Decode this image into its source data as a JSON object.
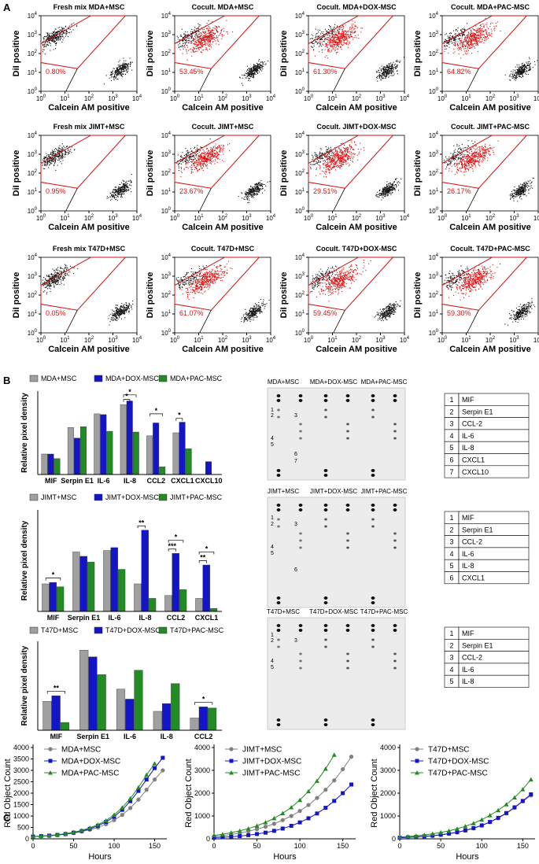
{
  "panel_labels": {
    "a": "A",
    "b": "B",
    "c": "C"
  },
  "flow": {
    "y_label": "DiI positive",
    "x_label": "Calcein AM positive",
    "tick_base": "10",
    "tick_exponents": [
      0,
      1,
      2,
      3,
      4
    ],
    "plots": [
      {
        "title": "Fresh mix MDA+MSC",
        "gate_percent": "0.80%"
      },
      {
        "title": "Cocult. MDA+MSC",
        "gate_percent": "53.45%"
      },
      {
        "title": "Cocult. MDA+DOX-MSC",
        "gate_percent": "61.30%"
      },
      {
        "title": "Cocult. MDA+PAC-MSC",
        "gate_percent": "64.82%"
      },
      {
        "title": "Fresh mix JIMT+MSC",
        "gate_percent": "0.95%"
      },
      {
        "title": "Cocult. JIMT+MSC",
        "gate_percent": "23.67%"
      },
      {
        "title": "Cocult. JIMT+DOX-MSC",
        "gate_percent": "29.51%"
      },
      {
        "title": "Cocult. JIMT+PAC-MSC",
        "gate_percent": "26.17%"
      },
      {
        "title": "Fresh mix T47D+MSC",
        "gate_percent": "0.05%"
      },
      {
        "title": "Cocult. T47D+MSC",
        "gate_percent": "61.07%"
      },
      {
        "title": "Cocult. T47D+DOX-MSC",
        "gate_percent": "59.45%"
      },
      {
        "title": "Cocult. T47D+PAC-MSC",
        "gate_percent": "59.30%"
      }
    ]
  },
  "blots": [
    {
      "headers": [
        "MDA+MSC",
        "MDA+DOX-MSC",
        "MDA+PAC-MSC"
      ],
      "spot_labels": [
        "1",
        "2",
        "3",
        "4",
        "5",
        "6",
        "7"
      ],
      "key": [
        [
          "1",
          "MIF"
        ],
        [
          "2",
          "Serpin E1"
        ],
        [
          "3",
          "CCL-2"
        ],
        [
          "4",
          "IL-6"
        ],
        [
          "5",
          "IL-8"
        ],
        [
          "6",
          "CXCL1"
        ],
        [
          "7",
          "CXCL10"
        ]
      ]
    },
    {
      "headers": [
        "JIMT+MSC",
        "JIMT+DOX-MSC",
        "JIMT+PAC-MSC"
      ],
      "spot_labels": [
        "1",
        "2",
        "3",
        "4",
        "5",
        "6"
      ],
      "key": [
        [
          "1",
          "MIF"
        ],
        [
          "2",
          "Serpin E1"
        ],
        [
          "3",
          "CCL-2"
        ],
        [
          "4",
          "IL-6"
        ],
        [
          "5",
          "IL-8"
        ],
        [
          "6",
          "CXCL1"
        ]
      ]
    },
    {
      "headers": [
        "T47D+MSC",
        "T47D+DOX-MSC",
        "T47D+PAC-MSC"
      ],
      "spot_labels": [
        "1",
        "2",
        "3",
        "4",
        "5"
      ],
      "key": [
        [
          "1",
          "MIF"
        ],
        [
          "2",
          "Serpin E1"
        ],
        [
          "3",
          "CCL-2"
        ],
        [
          "4",
          "IL-6"
        ],
        [
          "5",
          "IL-8"
        ]
      ]
    }
  ],
  "chart_data": [
    {
      "type": "bar",
      "y_label": "Relative pixel density",
      "ylim": [
        0,
        1.1
      ],
      "categories": [
        "MIF",
        "Serpin E1",
        "IL-6",
        "IL-8",
        "CCL2",
        "CXCL1",
        "CXCL10"
      ],
      "series": [
        {
          "name": "MDA+MSC",
          "color": "#a0a0a0",
          "values": [
            0.27,
            0.62,
            0.8,
            0.92,
            0.51,
            0.55,
            null
          ]
        },
        {
          "name": "MDA+DOX-MSC",
          "color": "#1515c8",
          "values": [
            0.27,
            0.48,
            0.79,
            0.97,
            0.68,
            0.69,
            0.17
          ]
        },
        {
          "name": "MDA+PAC-MSC",
          "color": "#238b23",
          "values": [
            0.21,
            0.63,
            0.57,
            0.56,
            0.1,
            0.34,
            null
          ]
        }
      ],
      "annotations": [
        {
          "text": "*",
          "category": 3,
          "series": [
            0,
            2
          ],
          "y": 1.05
        },
        {
          "text": "*",
          "category": 3,
          "series": [
            0,
            1
          ],
          "y": 0.99
        },
        {
          "text": "*",
          "category": 4,
          "series": [
            0,
            2
          ],
          "y": 0.8
        },
        {
          "text": "*",
          "category": 5,
          "series": [
            0,
            1
          ],
          "y": 0.74
        }
      ]
    },
    {
      "type": "bar",
      "y_label": "Relative pixel density",
      "ylim": [
        0,
        0.7
      ],
      "categories": [
        "MIF",
        "Serpin E1",
        "IL-6",
        "IL-8",
        "CCL2",
        "CXCL1"
      ],
      "series": [
        {
          "name": "JIMT+MSC",
          "color": "#a0a0a0",
          "values": [
            0.19,
            0.41,
            0.42,
            0.19,
            0.11,
            0.09
          ]
        },
        {
          "name": "JIMT+DOX-MSC",
          "color": "#1515c8",
          "values": [
            0.2,
            0.38,
            0.44,
            0.56,
            0.4,
            0.32
          ]
        },
        {
          "name": "JIMT+PAC-MSC",
          "color": "#238b23",
          "values": [
            0.17,
            0.34,
            0.29,
            0.09,
            0.15,
            0.02
          ]
        }
      ],
      "annotations": [
        {
          "text": "*",
          "category": 0,
          "series": [
            0,
            2
          ],
          "y": 0.23
        },
        {
          "text": "**",
          "category": 3,
          "series": [
            0,
            1
          ],
          "y": 0.59
        },
        {
          "text": "*",
          "category": 4,
          "series": [
            0,
            2
          ],
          "y": 0.49
        },
        {
          "text": "***",
          "category": 4,
          "series": [
            0,
            1
          ],
          "y": 0.43
        },
        {
          "text": "*",
          "category": 5,
          "series": [
            0,
            2
          ],
          "y": 0.41
        },
        {
          "text": "**",
          "category": 5,
          "series": [
            0,
            1
          ],
          "y": 0.35
        }
      ]
    },
    {
      "type": "bar",
      "y_label": "Relative pixel density",
      "ylim": [
        0,
        0.8
      ],
      "categories": [
        "MIF",
        "Serpin E1",
        "IL-6",
        "IL-8",
        "CCL2"
      ],
      "series": [
        {
          "name": "T47D+MSC",
          "color": "#a0a0a0",
          "values": [
            0.26,
            0.72,
            0.37,
            0.17,
            0.11
          ]
        },
        {
          "name": "T47D+DOX-MSC",
          "color": "#1515c8",
          "values": [
            0.31,
            0.66,
            0.28,
            0.24,
            0.21
          ]
        },
        {
          "name": "T47D+PAC-MSC",
          "color": "#238b23",
          "values": [
            0.07,
            0.5,
            0.54,
            0.42,
            0.2
          ]
        }
      ],
      "annotations": [
        {
          "text": "**",
          "category": 0,
          "series": [
            0,
            2
          ],
          "y": 0.35
        },
        {
          "text": "*",
          "category": 4,
          "series": [
            0,
            2
          ],
          "y": 0.25
        }
      ]
    },
    {
      "type": "line",
      "x_label": "Hours",
      "y_label": "Red Object Count",
      "xlim": [
        0,
        165
      ],
      "ylim": [
        0,
        4000
      ],
      "xticks": [
        0,
        50,
        100,
        150
      ],
      "yticks": [
        0,
        500,
        1000,
        1500,
        2000,
        2500,
        3000,
        3500,
        4000
      ],
      "x": [
        0,
        10,
        20,
        30,
        40,
        50,
        60,
        70,
        80,
        90,
        100,
        110,
        120,
        130,
        140,
        150,
        160
      ],
      "series": [
        {
          "name": "MDA+MSC",
          "color": "#808080",
          "marker": "circle",
          "values": [
            100,
            110,
            130,
            160,
            200,
            250,
            320,
            400,
            500,
            640,
            820,
            1050,
            1350,
            1720,
            2150,
            2600,
            3000
          ]
        },
        {
          "name": "MDA+DOX-MSC",
          "color": "#1515c8",
          "marker": "square",
          "values": [
            100,
            120,
            140,
            170,
            210,
            270,
            340,
            440,
            570,
            740,
            970,
            1270,
            1650,
            2100,
            2600,
            3100,
            3550
          ]
        },
        {
          "name": "MDA+PAC-MSC",
          "color": "#238b23",
          "marker": "triangle",
          "values": [
            100,
            120,
            150,
            180,
            230,
            290,
            370,
            480,
            620,
            800,
            1050,
            1370,
            1770,
            2250,
            2800,
            3300,
            null
          ]
        }
      ]
    },
    {
      "type": "line",
      "x_label": "Hours",
      "y_label": "Red Object Count",
      "xlim": [
        0,
        165
      ],
      "ylim": [
        0,
        4000
      ],
      "xticks": [
        0,
        50,
        100,
        150
      ],
      "yticks": [
        0,
        1000,
        2000,
        3000,
        4000
      ],
      "x": [
        0,
        10,
        20,
        30,
        40,
        50,
        60,
        70,
        80,
        90,
        100,
        110,
        120,
        130,
        140,
        150,
        160
      ],
      "series": [
        {
          "name": "JIMT+MSC",
          "color": "#808080",
          "marker": "circle",
          "values": [
            100,
            140,
            190,
            250,
            330,
            420,
            530,
            660,
            820,
            1000,
            1220,
            1480,
            1790,
            2150,
            2560,
            3050,
            3600
          ]
        },
        {
          "name": "JIMT+DOX-MSC",
          "color": "#1515c8",
          "marker": "square",
          "values": [
            50,
            70,
            90,
            120,
            160,
            210,
            270,
            350,
            450,
            570,
            720,
            900,
            1110,
            1360,
            1660,
            2000,
            2380
          ]
        },
        {
          "name": "JIMT+PAC-MSC",
          "color": "#238b23",
          "marker": "triangle",
          "values": [
            150,
            200,
            270,
            350,
            450,
            570,
            720,
            900,
            1120,
            1380,
            1700,
            2080,
            2540,
            3070,
            3680,
            null,
            null
          ]
        }
      ]
    },
    {
      "type": "line",
      "x_label": "Hours",
      "y_label": "Red Object Count",
      "xlim": [
        0,
        165
      ],
      "ylim": [
        0,
        4000
      ],
      "xticks": [
        0,
        50,
        100,
        150
      ],
      "yticks": [
        0,
        1000,
        2000,
        3000,
        4000
      ],
      "x": [
        0,
        10,
        20,
        30,
        40,
        50,
        60,
        70,
        80,
        90,
        100,
        110,
        120,
        130,
        140,
        150,
        160
      ],
      "series": [
        {
          "name": "T47D+MSC",
          "color": "#808080",
          "marker": "circle",
          "values": [
            50,
            60,
            80,
            100,
            130,
            170,
            220,
            280,
            360,
            460,
            580,
            730,
            900,
            1110,
            1360,
            1640,
            1900
          ]
        },
        {
          "name": "T47D+DOX-MSC",
          "color": "#1515c8",
          "marker": "square",
          "values": [
            50,
            65,
            85,
            110,
            140,
            180,
            230,
            290,
            370,
            470,
            590,
            740,
            920,
            1130,
            1380,
            1660,
            1950
          ]
        },
        {
          "name": "T47D+PAC-MSC",
          "color": "#238b23",
          "marker": "triangle",
          "values": [
            80,
            100,
            130,
            170,
            220,
            280,
            350,
            440,
            550,
            680,
            840,
            1030,
            1250,
            1510,
            1810,
            2170,
            2600
          ]
        }
      ]
    }
  ]
}
